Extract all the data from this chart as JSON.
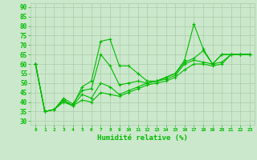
{
  "background_color": "#cce8cc",
  "grid_color": "#aaccaa",
  "line_color": "#00bb00",
  "xlabel": "Humidité relative (%)",
  "ylabel_ticks": [
    30,
    35,
    40,
    45,
    50,
    55,
    60,
    65,
    70,
    75,
    80,
    85,
    90
  ],
  "xlim": [
    -0.5,
    23.5
  ],
  "ylim": [
    28,
    92
  ],
  "xtick_labels": [
    "0",
    "1",
    "2",
    "3",
    "4",
    "5",
    "6",
    "7",
    "8",
    "9",
    "10",
    "11",
    "12",
    "13",
    "14",
    "15",
    "16",
    "17",
    "18",
    "19",
    "20",
    "21",
    "22",
    "23"
  ],
  "series": [
    [
      60,
      35,
      36,
      41,
      38,
      48,
      51,
      72,
      73,
      59,
      59,
      55,
      51,
      51,
      53,
      55,
      62,
      81,
      68,
      60,
      65,
      65,
      65,
      65
    ],
    [
      60,
      35,
      36,
      42,
      39,
      46,
      47,
      65,
      59,
      49,
      50,
      51,
      50,
      51,
      53,
      55,
      61,
      63,
      67,
      60,
      65,
      65,
      65,
      65
    ],
    [
      60,
      35,
      36,
      41,
      38,
      44,
      42,
      50,
      48,
      44,
      46,
      48,
      50,
      51,
      52,
      54,
      60,
      62,
      61,
      60,
      61,
      65,
      65,
      65
    ],
    [
      60,
      35,
      36,
      40,
      38,
      41,
      40,
      45,
      44,
      43,
      45,
      47,
      49,
      50,
      51,
      53,
      57,
      60,
      60,
      59,
      60,
      65,
      65,
      65
    ]
  ]
}
